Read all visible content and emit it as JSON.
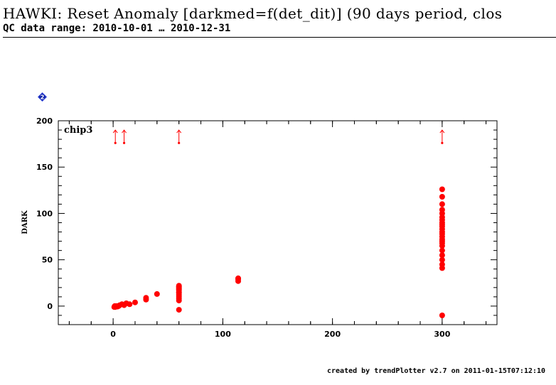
{
  "header": {
    "title": "HAWKI: Reset Anomaly [darkmed=f(det_dit)] (90 days period, clos",
    "subtitle": "QC data range: 2010-10-01 … 2010-12-31"
  },
  "footer": {
    "text": "created by trendPlotter v2.7 on 2011-01-15T07:12:10"
  },
  "icons": {
    "help": "help-diamond-icon"
  },
  "colors": {
    "series": "#ff0000",
    "axis": "#000000"
  },
  "chart_data": {
    "type": "scatter",
    "title": "chip3",
    "xlabel": "",
    "ylabel": "DARK",
    "xlim": [
      -50,
      350
    ],
    "ylim": [
      -20,
      200
    ],
    "xticks": [
      0,
      100,
      200,
      300
    ],
    "yticks": [
      0,
      50,
      100,
      150,
      200
    ],
    "series": [
      {
        "x": [
          1,
          1.5,
          2,
          3,
          4,
          5,
          6,
          8,
          10,
          12,
          15,
          20,
          30,
          30,
          40,
          60,
          60,
          60,
          60,
          60,
          60,
          60,
          60,
          60,
          60,
          60,
          60,
          60,
          114,
          114,
          114,
          300,
          300,
          300,
          300,
          300,
          300,
          300,
          300,
          300,
          300,
          300,
          300,
          300,
          300,
          300,
          300,
          300,
          300,
          300,
          300,
          300,
          300,
          300,
          300
        ],
        "y": [
          -1,
          0,
          -1,
          0,
          -0.5,
          0,
          1,
          2,
          1,
          3,
          2,
          4,
          7,
          9,
          13,
          -4,
          6,
          8,
          10,
          12,
          14,
          15,
          17,
          18,
          19,
          20,
          21,
          22,
          27,
          29,
          30,
          -10,
          41,
          45,
          50,
          55,
          60,
          65,
          68,
          70,
          72,
          75,
          78,
          80,
          83,
          86,
          88,
          90,
          93,
          96,
          100,
          104,
          110,
          118,
          126
        ]
      }
    ],
    "offscale_markers_x": [
      2,
      10,
      60,
      300
    ]
  }
}
